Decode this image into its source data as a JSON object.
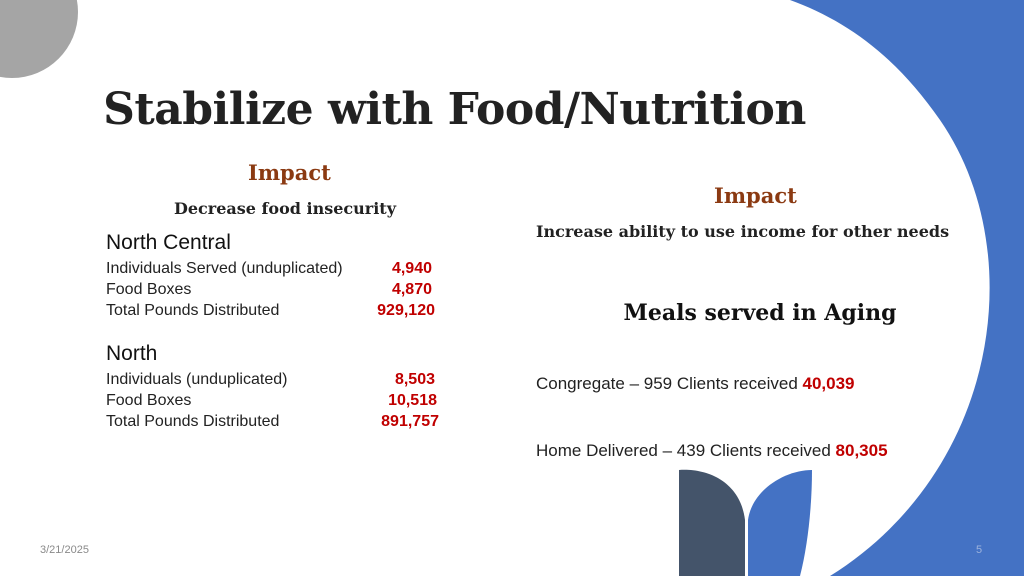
{
  "title": "Stabilize with Food/Nutrition",
  "left": {
    "impact_label": "Impact",
    "impact_text": "Decrease food insecurity",
    "regions": [
      {
        "name": "North Central",
        "rows": [
          {
            "label": "Individuals Served (unduplicated)",
            "value": "4,940"
          },
          {
            "label": "Food Boxes",
            "value": "4,870"
          },
          {
            "label": "Total Pounds Distributed",
            "value": "929,120"
          }
        ]
      },
      {
        "name": "North",
        "rows": [
          {
            "label": "Individuals (unduplicated)",
            "value": "8,503"
          },
          {
            "label": "Food Boxes",
            "value": "10,518"
          },
          {
            "label": "Total Pounds Distributed",
            "value": "891,757"
          }
        ]
      }
    ]
  },
  "right": {
    "impact_label": "Impact",
    "impact_text": "Increase ability to use income for other needs",
    "meals_heading": "Meals served in Aging",
    "congregate_text": "Congregate – 959 Clients received",
    "congregate_value": "40,039",
    "home_text": "Home Delivered – 439 Clients received",
    "home_value": "80,305"
  },
  "footer": {
    "date": "3/21/2025",
    "page_number": "5"
  },
  "colors": {
    "accent_blue": "#4472C4",
    "dark_slate": "#44546A",
    "value_red": "#C00000",
    "impact_brown": "#8B3A12"
  }
}
